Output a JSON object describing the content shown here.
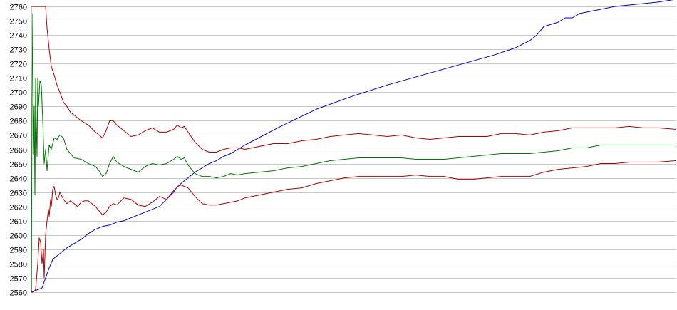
{
  "chart_data": {
    "type": "line",
    "title": "",
    "xlabel": "",
    "ylabel": "",
    "ylim": [
      2560,
      2760
    ],
    "y_ticks": [
      2560,
      2570,
      2580,
      2590,
      2600,
      2610,
      2620,
      2630,
      2640,
      2650,
      2660,
      2670,
      2680,
      2690,
      2700,
      2710,
      2720,
      2730,
      2740,
      2750,
      2760
    ],
    "x_range": [
      0,
      905
    ],
    "grid": "horizontal",
    "legend": "none",
    "series": [
      {
        "color": "#0000cc",
        "x": [
          0,
          5,
          10,
          15,
          20,
          25,
          30,
          40,
          50,
          60,
          70,
          80,
          90,
          100,
          110,
          120,
          130,
          140,
          150,
          160,
          170,
          180,
          190,
          200,
          210,
          220,
          230,
          240,
          250,
          260,
          270,
          280,
          300,
          350,
          400,
          450,
          500,
          550,
          600,
          650,
          680,
          700,
          710,
          720,
          740,
          750,
          760,
          770,
          780,
          800,
          820,
          840,
          860,
          880,
          905
        ],
        "y": [
          2560,
          2561,
          2562,
          2563,
          2570,
          2577,
          2583,
          2587,
          2591,
          2594,
          2597,
          2601,
          2604,
          2606,
          2607,
          2609,
          2610,
          2612,
          2614,
          2616,
          2618,
          2620,
          2625,
          2631,
          2636,
          2640,
          2644,
          2647,
          2650,
          2652,
          2655,
          2657,
          2663,
          2676,
          2688,
          2697,
          2705,
          2712,
          2719,
          2726,
          2731,
          2736,
          2740,
          2746,
          2749,
          2752,
          2752,
          2755,
          2756,
          2758,
          2760,
          2761,
          2762,
          2763,
          2765
        ]
      },
      {
        "color": "#b00000",
        "x": [
          0,
          3,
          8,
          14,
          18,
          20,
          22,
          25,
          28,
          32,
          36,
          40,
          45,
          50,
          55,
          60,
          70,
          80,
          90,
          95,
          100,
          105,
          110,
          115,
          120,
          130,
          140,
          150,
          160,
          170,
          180,
          190,
          200,
          205,
          210,
          215,
          220,
          230,
          240,
          250,
          260,
          270,
          280,
          290,
          300,
          320,
          340,
          360,
          380,
          400,
          420,
          440,
          460,
          480,
          500,
          520,
          540,
          560,
          580,
          600,
          620,
          640,
          660,
          680,
          700,
          720,
          740,
          760,
          780,
          800,
          820,
          840,
          860,
          880,
          905
        ],
        "y": [
          2760,
          2760,
          2760,
          2760,
          2760,
          2760,
          2745,
          2730,
          2718,
          2712,
          2705,
          2700,
          2693,
          2690,
          2686,
          2684,
          2680,
          2677,
          2672,
          2670,
          2668,
          2673,
          2680,
          2680,
          2677,
          2673,
          2669,
          2670,
          2673,
          2675,
          2672,
          2672,
          2674,
          2677,
          2675,
          2676,
          2672,
          2665,
          2660,
          2658,
          2658,
          2660,
          2661,
          2661,
          2660,
          2662,
          2664,
          2664,
          2666,
          2667,
          2669,
          2670,
          2671,
          2670,
          2669,
          2670,
          2668,
          2667,
          2668,
          2669,
          2669,
          2669,
          2671,
          2671,
          2670,
          2672,
          2673,
          2675,
          2675,
          2675,
          2675,
          2676,
          2675,
          2675,
          2674
        ]
      },
      {
        "color": "#007700",
        "x": [
          0,
          1,
          2,
          3,
          4,
          5,
          6,
          7,
          8,
          9,
          10,
          12,
          14,
          16,
          18,
          20,
          22,
          25,
          28,
          32,
          36,
          40,
          45,
          50,
          55,
          60,
          70,
          80,
          90,
          95,
          100,
          105,
          110,
          115,
          120,
          130,
          140,
          150,
          160,
          170,
          180,
          190,
          200,
          205,
          210,
          215,
          220,
          230,
          240,
          250,
          260,
          270,
          280,
          290,
          300,
          320,
          340,
          360,
          380,
          400,
          420,
          440,
          460,
          480,
          500,
          520,
          540,
          560,
          580,
          600,
          620,
          640,
          660,
          680,
          700,
          720,
          740,
          760,
          780,
          800,
          820,
          840,
          860,
          880,
          905
        ],
        "y": [
          2560,
          2695,
          2755,
          2656,
          2690,
          2628,
          2710,
          2676,
          2655,
          2710,
          2690,
          2708,
          2705,
          2680,
          2650,
          2660,
          2645,
          2663,
          2660,
          2668,
          2667,
          2670,
          2668,
          2660,
          2657,
          2654,
          2653,
          2650,
          2648,
          2645,
          2641,
          2643,
          2650,
          2655,
          2651,
          2648,
          2646,
          2644,
          2648,
          2650,
          2649,
          2650,
          2653,
          2655,
          2653,
          2654,
          2649,
          2643,
          2641,
          2641,
          2640,
          2641,
          2643,
          2642,
          2643,
          2644,
          2645,
          2647,
          2648,
          2650,
          2652,
          2653,
          2654,
          2654,
          2654,
          2654,
          2653,
          2653,
          2653,
          2654,
          2655,
          2656,
          2657,
          2657,
          2657,
          2658,
          2659,
          2661,
          2661,
          2663,
          2663,
          2663,
          2663,
          2663,
          2663
        ]
      },
      {
        "color": "#b00000",
        "x": [
          0,
          3,
          6,
          9,
          11,
          13,
          15,
          17,
          18,
          20,
          22,
          24,
          25,
          27,
          28,
          30,
          32,
          34,
          36,
          38,
          40,
          45,
          50,
          55,
          60,
          65,
          70,
          75,
          80,
          85,
          90,
          95,
          100,
          105,
          110,
          115,
          120,
          130,
          140,
          150,
          160,
          170,
          180,
          190,
          200,
          205,
          210,
          215,
          220,
          230,
          240,
          250,
          260,
          270,
          280,
          290,
          300,
          320,
          340,
          360,
          380,
          400,
          420,
          440,
          460,
          480,
          500,
          520,
          540,
          560,
          580,
          600,
          620,
          640,
          660,
          680,
          700,
          720,
          740,
          760,
          780,
          800,
          820,
          840,
          860,
          880,
          905
        ],
        "y": [
          2560,
          2560,
          2562,
          2580,
          2598,
          2595,
          2580,
          2590,
          2570,
          2600,
          2610,
          2618,
          2613,
          2625,
          2620,
          2632,
          2634,
          2628,
          2625,
          2626,
          2630,
          2625,
          2622,
          2624,
          2622,
          2620,
          2623,
          2624,
          2624,
          2622,
          2620,
          2617,
          2614,
          2616,
          2620,
          2622,
          2621,
          2626,
          2625,
          2621,
          2620,
          2623,
          2627,
          2625,
          2630,
          2634,
          2635,
          2634,
          2633,
          2627,
          2622,
          2621,
          2621,
          2622,
          2623,
          2624,
          2626,
          2628,
          2630,
          2632,
          2633,
          2636,
          2638,
          2640,
          2641,
          2641,
          2641,
          2641,
          2642,
          2641,
          2641,
          2639,
          2639,
          2640,
          2641,
          2641,
          2641,
          2644,
          2646,
          2647,
          2648,
          2650,
          2650,
          2651,
          2651,
          2651,
          2652
        ]
      }
    ]
  }
}
